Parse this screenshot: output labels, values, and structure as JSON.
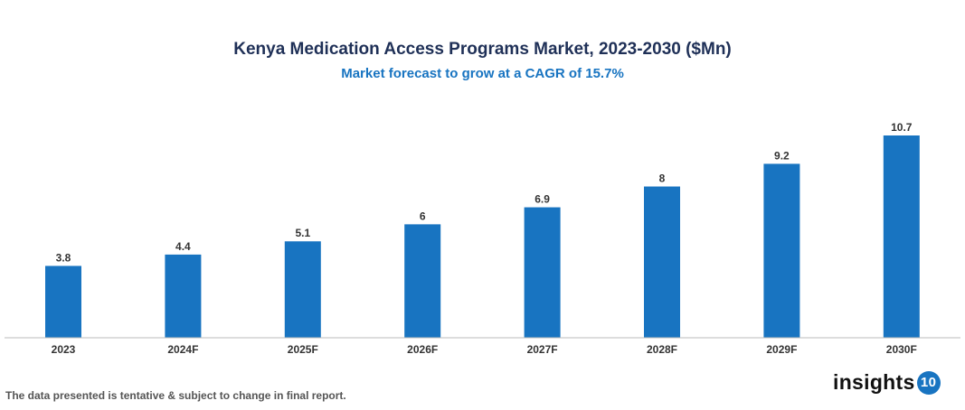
{
  "chart_data": {
    "type": "bar",
    "title": "Kenya Medication Access Programs Market, 2023-2030 ($Mn)",
    "subtitle": "Market forecast to grow at a CAGR of 15.7%",
    "categories": [
      "2023",
      "2024F",
      "2025F",
      "2026F",
      "2027F",
      "2028F",
      "2029F",
      "2030F"
    ],
    "values": [
      3.8,
      4.4,
      5.1,
      6,
      6.9,
      8,
      9.2,
      10.7
    ],
    "ylim": [
      0,
      10.7
    ],
    "grid": false,
    "bar_color": "#1874c1"
  },
  "footnote": "The data presented is tentative & subject to change in final report.",
  "logo": {
    "text": "insights",
    "badge": "10"
  }
}
